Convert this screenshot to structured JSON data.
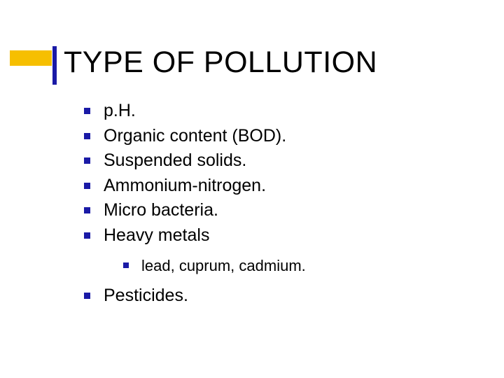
{
  "colors": {
    "accent": "#f6bf00",
    "title_bar": "#1a1aa6",
    "bullet": "#1a1aa6",
    "text": "#000000",
    "background": "#ffffff"
  },
  "title": "TYPE OF POLLUTION",
  "items": [
    {
      "text": "p.H."
    },
    {
      "text": "Organic content (BOD)."
    },
    {
      "text": "Suspended solids."
    },
    {
      "text": "Ammonium-nitrogen."
    },
    {
      "text": "Micro bacteria."
    },
    {
      "text": "Heavy metals",
      "children": [
        {
          "text": "lead, cuprum, cadmium."
        }
      ]
    },
    {
      "text": "Pesticides."
    }
  ]
}
